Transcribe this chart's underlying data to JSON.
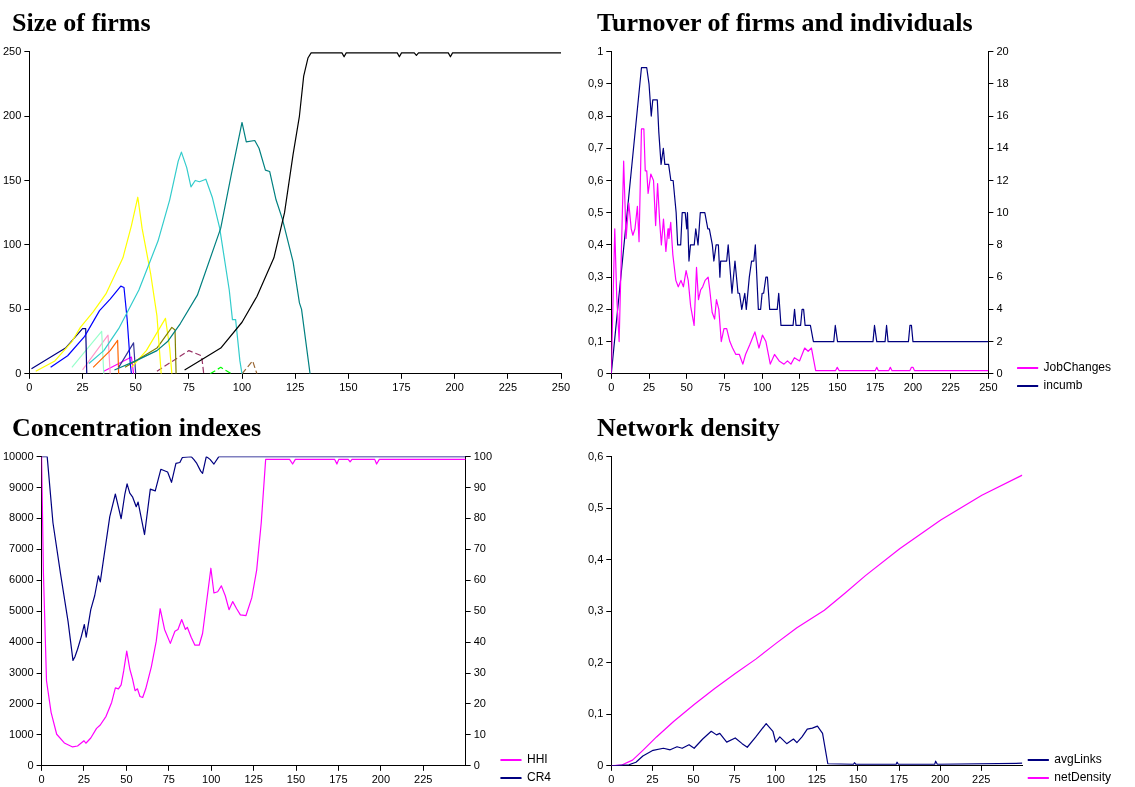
{
  "chart_data": [
    {
      "type": "line",
      "title": "Size of firms",
      "xlim": [
        0,
        250
      ],
      "xticks": [
        0,
        25,
        50,
        75,
        100,
        125,
        150,
        175,
        200,
        225,
        250
      ],
      "ylim": [
        0,
        250
      ],
      "yticks": [
        0,
        50,
        100,
        150,
        200,
        250
      ],
      "grid": false,
      "legend": false,
      "marker": "none",
      "series": [
        {
          "color": "#000000",
          "x": [
            73,
            80,
            90,
            100,
            107,
            115,
            120,
            124,
            127,
            129,
            131,
            132.5,
            135,
            147,
            148,
            149,
            173,
            174,
            175,
            181,
            182,
            183,
            197,
            198,
            199,
            250
          ],
          "values": [
            3,
            10,
            20,
            40,
            60,
            90,
            125,
            170,
            200,
            231,
            245,
            249,
            249,
            249,
            246,
            249,
            249,
            246,
            249,
            249,
            247,
            249,
            249,
            246,
            249,
            249
          ]
        },
        {
          "color": "#008080",
          "x": [
            40,
            50,
            60,
            65,
            71,
            79,
            90,
            95,
            100,
            102,
            106,
            108,
            111,
            113,
            116,
            119,
            124,
            127,
            128,
            132
          ],
          "values": [
            3,
            10,
            18,
            25,
            39,
            61,
            113,
            155,
            195,
            180,
            181,
            175,
            158,
            157,
            135,
            120,
            87,
            55,
            50,
            0
          ]
        },
        {
          "color": "#33cccc",
          "x": [
            28,
            35,
            42,
            51.5,
            60.5,
            66,
            70,
            71.5,
            74,
            76,
            78,
            80,
            83,
            86,
            89.5,
            94,
            95.5,
            97,
            99,
            100
          ],
          "values": [
            8,
            18,
            35,
            65,
            103,
            135,
            165,
            172,
            160,
            145,
            150,
            149,
            151,
            137,
            113,
            65,
            42,
            42,
            10,
            0
          ]
        },
        {
          "color": "#ffff00",
          "x": [
            3,
            12,
            20,
            24,
            30,
            36,
            44,
            48,
            51,
            53,
            57,
            60,
            62
          ],
          "values": [
            2,
            10,
            25,
            36,
            48,
            62,
            90,
            115,
            137,
            113,
            78,
            45,
            0
          ]
        },
        {
          "color": "#0000ff",
          "x": [
            10,
            18,
            26,
            33,
            38,
            43,
            44.5,
            46,
            47.5,
            48
          ],
          "values": [
            5,
            14,
            29,
            49,
            58,
            68,
            67,
            42,
            7,
            0
          ]
        },
        {
          "color": "#000080",
          "x": [
            1,
            17,
            25,
            26.5,
            27
          ],
          "values": [
            4,
            20,
            35,
            35,
            0
          ]
        },
        {
          "color": "#808000",
          "x": [
            45,
            60,
            67,
            68.5,
            69
          ],
          "values": [
            5,
            20,
            36,
            34,
            0
          ]
        },
        {
          "color": "#ffff00",
          "x": [
            48,
            55,
            64,
            66,
            67
          ],
          "values": [
            5,
            18,
            43,
            20,
            0
          ]
        },
        {
          "color": "#333399",
          "x": [
            42,
            49,
            50
          ],
          "values": [
            5,
            24,
            0
          ]
        },
        {
          "color": "#ff6600",
          "x": [
            30,
            38,
            41.5,
            42
          ],
          "values": [
            5,
            18,
            26,
            0
          ]
        },
        {
          "color": "#99ffcc",
          "x": [
            20,
            34,
            35
          ],
          "values": [
            5,
            33,
            0
          ]
        },
        {
          "color": "#ff99cc",
          "x": [
            25,
            37,
            38
          ],
          "values": [
            3,
            30,
            0
          ]
        },
        {
          "color": "#ff00ff",
          "x": [
            35,
            48,
            49
          ],
          "values": [
            2,
            13,
            0
          ]
        },
        {
          "color": "#993366",
          "line_style": "dashed",
          "x": [
            60,
            75,
            81,
            82
          ],
          "values": [
            2,
            18,
            14,
            0
          ]
        },
        {
          "color": "#00ff00",
          "line_style": "dashed",
          "x": [
            85,
            90,
            95
          ],
          "values": [
            0,
            5,
            0
          ]
        },
        {
          "color": "#996633",
          "line_style": "dashed",
          "x": [
            100,
            105,
            107
          ],
          "values": [
            0,
            10,
            0
          ]
        }
      ]
    },
    {
      "type": "line",
      "title": "Turnover of firms and individuals",
      "xlim": [
        0,
        250
      ],
      "xticks": [
        0,
        25,
        50,
        75,
        100,
        125,
        150,
        175,
        200,
        225,
        250
      ],
      "ylim": [
        0,
        1
      ],
      "yticks": [
        0,
        {
          "value": 0.1,
          "label": "0,1"
        },
        {
          "value": 0.2,
          "label": "0,2"
        },
        {
          "value": 0.3,
          "label": "0,3"
        },
        {
          "value": 0.4,
          "label": "0,4"
        },
        {
          "value": 0.5,
          "label": "0,5"
        },
        {
          "value": 0.6,
          "label": "0,6"
        },
        {
          "value": 0.7,
          "label": "0,7"
        },
        {
          "value": 0.8,
          "label": "0,8"
        },
        {
          "value": 0.9,
          "label": "0,9"
        },
        1
      ],
      "y2lim": [
        0,
        20
      ],
      "y2ticks": [
        0,
        2,
        4,
        6,
        8,
        10,
        12,
        14,
        16,
        18,
        20
      ],
      "grid": false,
      "legend": "bottom right",
      "marker": "none",
      "series": [
        {
          "name": "JobChanges",
          "color": "#ff00ff",
          "x": [
            0,
            2.3,
            3.6,
            5.2,
            8.2,
            9.8,
            11.6,
            13.2,
            14.3,
            15.7,
            17.3,
            18.4,
            20,
            21.6,
            22.5,
            23.5,
            24.4,
            26.2,
            28,
            29.4,
            30.7,
            32.1,
            33.2,
            34.6,
            36.2,
            37.6,
            38.2,
            39.4,
            40.8,
            42.8,
            44.4,
            46.2,
            47.8,
            49.6,
            51,
            52.6,
            54.9,
            56.5,
            57.8,
            59.2,
            60.6,
            62.2,
            64.2,
            65.3,
            66.9,
            68.5,
            69.7,
            71.3,
            72.9,
            74.7,
            76.5,
            78.6,
            80.4,
            82.6,
            84.9,
            87.2,
            89,
            91.8,
            95.2,
            97.9,
            100.2,
            102.5,
            105.4,
            108.2,
            111.3,
            114.5,
            116.8,
            119.1,
            121.4,
            124.8,
            128.2,
            130.5,
            132.7,
            135.5,
            148.7,
            149.8,
            151,
            175,
            176,
            177,
            184,
            185,
            186,
            198,
            199,
            200,
            201,
            250
          ],
          "values": [
            0,
            0.45,
            0.24,
            0.1,
            0.66,
            0.42,
            0.53,
            0.45,
            0.43,
            0.45,
            0.52,
            0.41,
            0.76,
            0.76,
            0.63,
            0.63,
            0.56,
            0.62,
            0.6,
            0.46,
            0.59,
            0.47,
            0.4,
            0.48,
            0.38,
            0.45,
            0.42,
            0.47,
            0.37,
            0.29,
            0.27,
            0.29,
            0.27,
            0.32,
            0.29,
            0.21,
            0.15,
            0.33,
            0.23,
            0.26,
            0.27,
            0.29,
            0.3,
            0.26,
            0.19,
            0.17,
            0.23,
            0.2,
            0.1,
            0.14,
            0.14,
            0.1,
            0.08,
            0.06,
            0.06,
            0.03,
            0.06,
            0.09,
            0.13,
            0.08,
            0.12,
            0.1,
            0.03,
            0.06,
            0.04,
            0.03,
            0.04,
            0.03,
            0.05,
            0.04,
            0.08,
            0.07,
            0.08,
            0.01,
            0.01,
            0.02,
            0.01,
            0.01,
            0.02,
            0.01,
            0.01,
            0.02,
            0.01,
            0.01,
            0.02,
            0.02,
            0.01,
            0.01
          ]
        },
        {
          "name": "incumb",
          "color": "#000080",
          "axis": "y2",
          "x": [
            0,
            20,
            23.5,
            25,
            26.5,
            27.5,
            30.5,
            31.5,
            33,
            34.5,
            35.5,
            38,
            39.5,
            41,
            43,
            44,
            46,
            47,
            49,
            50,
            50.5,
            51.5,
            52.5,
            55,
            56,
            57.5,
            59,
            62,
            64,
            65,
            67,
            68,
            69.5,
            71,
            72,
            72.5,
            76.5,
            77.5,
            80,
            82,
            84,
            85,
            86.5,
            88.5,
            89.5,
            91.5,
            93,
            94.5,
            95.5,
            97.5,
            99,
            100,
            101,
            102.5,
            103.5,
            105,
            110,
            111,
            112.5,
            120.5,
            121.5,
            122.5,
            125.5,
            126.5,
            127.5,
            128.5,
            132,
            134,
            147.5,
            148.5,
            150,
            173.5,
            174.5,
            176,
            181.5,
            182.5,
            183.5,
            197,
            198,
            199,
            200,
            250
          ],
          "values": [
            0,
            19,
            19,
            18,
            16,
            17,
            17,
            15,
            13,
            14,
            13,
            13,
            12,
            12,
            10,
            8,
            8,
            10,
            10,
            9,
            10,
            7,
            8,
            8,
            9,
            8,
            10,
            10,
            9,
            9,
            8,
            7,
            8,
            8,
            6,
            7,
            7,
            8,
            5,
            7,
            5,
            5,
            4,
            5,
            4,
            6,
            7,
            7,
            8,
            4,
            4,
            5,
            5,
            6,
            6,
            4,
            4,
            5,
            3,
            3,
            4,
            3,
            3,
            4,
            4,
            3,
            3,
            2,
            2,
            3,
            2,
            2,
            3,
            2,
            2,
            3,
            2,
            2,
            3,
            3,
            2,
            2
          ]
        }
      ]
    },
    {
      "type": "line",
      "title": "Concentration indexes",
      "xlim": [
        0,
        250
      ],
      "xticks": [
        0,
        25,
        50,
        75,
        100,
        125,
        150,
        175,
        200,
        225
      ],
      "ylim": [
        0,
        10000
      ],
      "yticks": [
        0,
        1000,
        2000,
        3000,
        4000,
        5000,
        6000,
        7000,
        8000,
        9000,
        10000
      ],
      "y2lim": [
        0,
        100
      ],
      "y2ticks": [
        0,
        10,
        20,
        30,
        40,
        50,
        60,
        70,
        80,
        90,
        100
      ],
      "grid": false,
      "legend": "bottom right",
      "marker": "none",
      "series": [
        {
          "name": "HHI",
          "color": "#ff00ff",
          "x": [
            0,
            1.1,
            2.9,
            5.6,
            8.9,
            13.4,
            18.3,
            21.2,
            25,
            26.1,
            29,
            32.4,
            34.6,
            38,
            41.3,
            43.5,
            45.3,
            46.9,
            48.4,
            50.2,
            52,
            53.6,
            55.1,
            56.5,
            58,
            59.6,
            61.4,
            64.7,
            67.6,
            69.9,
            72.5,
            75.9,
            78.6,
            80.4,
            82.6,
            84.8,
            85.9,
            88.2,
            90.4,
            92.9,
            94.9,
            99.8,
            101.6,
            103.8,
            106,
            108.3,
            110.5,
            112.7,
            115,
            117.2,
            120.5,
            123.9,
            126.8,
            129.5,
            132.1,
            146.2,
            148,
            149.6,
            172.8,
            174.1,
            175.2,
            180.8,
            181.9,
            183,
            196.4,
            197.5,
            199.1,
            250
          ],
          "values": [
            10000,
            6200,
            2750,
            1730,
            1020,
            740,
            610,
            640,
            810,
            730,
            900,
            1210,
            1320,
            1600,
            2050,
            2520,
            2490,
            2620,
            3070,
            3710,
            3130,
            2810,
            2430,
            2490,
            2240,
            2210,
            2490,
            3200,
            4030,
            5080,
            4410,
            3960,
            4350,
            4410,
            4730,
            4410,
            4480,
            4160,
            3900,
            3900,
            4280,
            6390,
            5590,
            5630,
            5820,
            5500,
            5050,
            5310,
            5080,
            4880,
            4860,
            5430,
            6330,
            7860,
            9910,
            9910,
            9760,
            9910,
            9910,
            9760,
            9910,
            9910,
            9830,
            9910,
            9910,
            9760,
            9910,
            9910
          ]
        },
        {
          "name": "CR4",
          "color": "#000080",
          "axis": "y2",
          "x": [
            0,
            3.3,
            6.7,
            11.2,
            15.6,
            18.5,
            19.6,
            21.2,
            23.4,
            25.2,
            26.3,
            29,
            31.3,
            33.5,
            34.6,
            36.8,
            40.2,
            43.5,
            46.9,
            49.1,
            50.4,
            52,
            53.6,
            55.8,
            56.9,
            60.7,
            64.1,
            67,
            68.5,
            70.3,
            74.3,
            76.6,
            79.2,
            81.5,
            83,
            88.2,
            89.7,
            91.5,
            93.8,
            94.9,
            97.1,
            99.3,
            101.6,
            104.5,
            250
          ],
          "values": [
            100,
            100,
            78.6,
            62,
            46.7,
            34.1,
            35.2,
            37.7,
            41.8,
            45.7,
            41.6,
            50.5,
            55,
            61.4,
            59.5,
            67.8,
            80.6,
            87.9,
            79.9,
            87.9,
            91.2,
            88.2,
            87,
            83.8,
            85.3,
            74.8,
            89.5,
            88.9,
            92.1,
            95.9,
            95,
            91.7,
            97.8,
            98.1,
            99.7,
            100,
            99.1,
            97.8,
            95.3,
            94.6,
            100,
            99.1,
            97.6,
            100,
            100
          ]
        }
      ]
    },
    {
      "type": "line",
      "title": "Network density",
      "xlim": [
        0,
        250
      ],
      "xticks": [
        0,
        25,
        50,
        75,
        100,
        125,
        150,
        175,
        200,
        225
      ],
      "ylim": [
        0,
        0.6
      ],
      "yticks": [
        0,
        {
          "value": 0.1,
          "label": "0,1"
        },
        {
          "value": 0.2,
          "label": "0,2"
        },
        {
          "value": 0.3,
          "label": "0,3"
        },
        {
          "value": 0.4,
          "label": "0,4"
        },
        {
          "value": 0.5,
          "label": "0,5"
        },
        {
          "value": 0.6,
          "label": "0,6"
        }
      ],
      "grid": false,
      "legend": "bottom right",
      "marker": "none",
      "series": [
        {
          "name": "avgLinks",
          "color": "#000080",
          "x": [
            0,
            10.8,
            15,
            19.2,
            25.4,
            31.7,
            35.8,
            40,
            43.1,
            47.3,
            50.4,
            55.6,
            60.8,
            64,
            66,
            70.2,
            75.4,
            79.6,
            82.7,
            87.9,
            94.2,
            98.3,
            100,
            102.5,
            106.7,
            110.8,
            112.9,
            116,
            119.2,
            122.3,
            125.4,
            128.5,
            131.7,
            147.3,
            147.9,
            148.8,
            173.3,
            173.8,
            174.6,
            196.7,
            197.3,
            198.3,
            250
          ],
          "values": [
            0,
            0.002,
            0.007,
            0.019,
            0.03,
            0.034,
            0.031,
            0.037,
            0.034,
            0.041,
            0.034,
            0.052,
            0.067,
            0.06,
            0.063,
            0.046,
            0.054,
            0.043,
            0.036,
            0.056,
            0.082,
            0.067,
            0.046,
            0.056,
            0.043,
            0.052,
            0.045,
            0.056,
            0.071,
            0.073,
            0.077,
            0.063,
            0.004,
            0.003,
            0.006,
            0.003,
            0.003,
            0.007,
            0.003,
            0.003,
            0.009,
            0.003,
            0.005
          ]
        },
        {
          "name": "netDensity",
          "color": "#ff00ff",
          "x": [
            0,
            6.7,
            12.9,
            19.2,
            27.5,
            37.9,
            50.4,
            62.9,
            75.4,
            87.9,
            100.4,
            112.9,
            129.6,
            142.1,
            154.6,
            175.4,
            200.4,
            225.4,
            250
          ],
          "values": [
            0,
            0.002,
            0.011,
            0.03,
            0.056,
            0.086,
            0.119,
            0.15,
            0.179,
            0.207,
            0.238,
            0.268,
            0.302,
            0.335,
            0.369,
            0.421,
            0.477,
            0.525,
            0.564
          ]
        }
      ]
    }
  ]
}
